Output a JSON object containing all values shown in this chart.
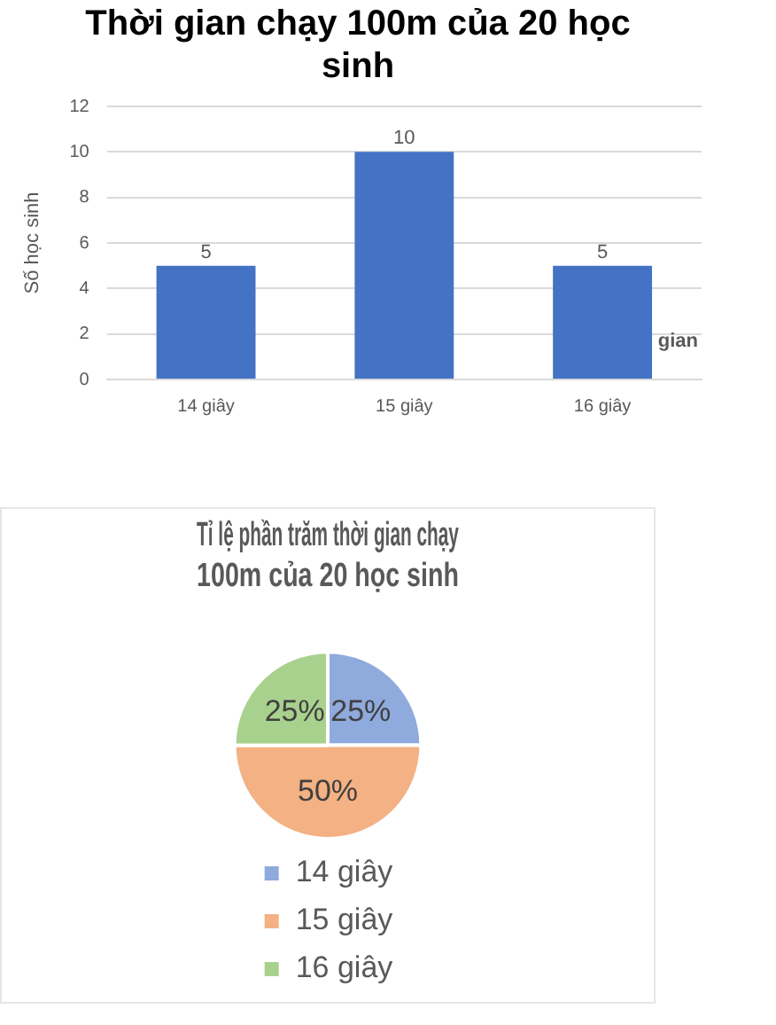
{
  "chart_data": [
    {
      "type": "bar",
      "title": [
        "Thời gian chạy 100m của 20 học",
        "sinh"
      ],
      "ylabel": "Số học sinh",
      "categories": [
        "14 giây",
        "15 giây",
        "16 giây"
      ],
      "values": [
        5,
        10,
        5
      ],
      "color": "#4472c4",
      "ylim": [
        0,
        12
      ],
      "yticks": [
        0,
        2,
        4,
        6,
        8,
        10,
        12
      ],
      "grid": "y",
      "data_labels": true,
      "legend": false,
      "annotations": [
        "gian"
      ]
    },
    {
      "type": "pie",
      "title": [
        "Tỉ lệ phần trăm thời gian chạy",
        "100m của 20 học sinh"
      ],
      "categories": [
        "14 giây",
        "15 giây",
        "16 giây"
      ],
      "values": [
        25,
        50,
        25
      ],
      "colors": [
        "#8faadc",
        "#f4b183",
        "#a9d18e"
      ],
      "value_labels": [
        "25%",
        "50%",
        "25%"
      ],
      "legend": "bottom"
    }
  ]
}
